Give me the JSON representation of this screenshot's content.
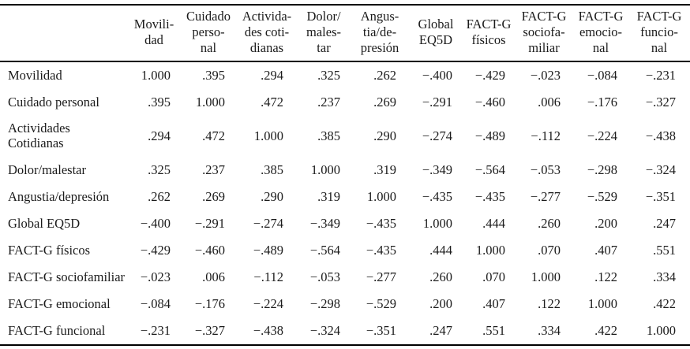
{
  "page": {
    "background_color": "#ffffff",
    "text_color": "#1b1b1b",
    "rule_color": "#000000"
  },
  "table": {
    "corner_label": "",
    "columns": [
      {
        "key": "movilidad",
        "header": "Movili-\ndad"
      },
      {
        "key": "cuidado-personal",
        "header": "Cuidado\nperso-\nnal"
      },
      {
        "key": "actividades-cotidianas",
        "header": "Activida-\ndes coti-\ndianas"
      },
      {
        "key": "dolor-malestar",
        "header": "Dolor/\nmales-\ntar"
      },
      {
        "key": "angustia-depresion",
        "header": "Angus-\ntia/de-\npresión"
      },
      {
        "key": "global-eq5d",
        "header": "Global\nEQ5D"
      },
      {
        "key": "factg-fisicos",
        "header": "FACT-G\nfísicos"
      },
      {
        "key": "factg-sociofamiliar",
        "header": "FACT-G\nsociofa-\nmiliar"
      },
      {
        "key": "factg-emocional",
        "header": "FACT-G\nemocio-\nnal"
      },
      {
        "key": "factg-funcional",
        "header": "FACT-G\nfuncio-\nnal"
      }
    ],
    "rows": [
      {
        "label": "Movilidad",
        "values": [
          "1.000",
          ".395",
          ".294",
          ".325",
          ".262",
          "−.400",
          "−.429",
          "−.023",
          "−.084",
          "−.231"
        ]
      },
      {
        "label": "Cuidado personal",
        "values": [
          ".395",
          "1.000",
          ".472",
          ".237",
          ".269",
          "−.291",
          "−.460",
          ".006",
          "−.176",
          "−.327"
        ]
      },
      {
        "label": "Actividades\nCotidianas",
        "values": [
          ".294",
          ".472",
          "1.000",
          ".385",
          ".290",
          "−.274",
          "−.489",
          "−.112",
          "−.224",
          "−.438"
        ]
      },
      {
        "label": "Dolor/malestar",
        "values": [
          ".325",
          ".237",
          ".385",
          "1.000",
          ".319",
          "−.349",
          "−.564",
          "−.053",
          "−.298",
          "−.324"
        ]
      },
      {
        "label": "Angustia/depresión",
        "values": [
          ".262",
          ".269",
          ".290",
          ".319",
          "1.000",
          "−.435",
          "−.435",
          "−.277",
          "−.529",
          "−.351"
        ]
      },
      {
        "label": "Global EQ5D",
        "values": [
          "−.400",
          "−.291",
          "−.274",
          "−.349",
          "−.435",
          "1.000",
          ".444",
          ".260",
          ".200",
          ".247"
        ]
      },
      {
        "label": "FACT-G físicos",
        "values": [
          "−.429",
          "−.460",
          "−.489",
          "−.564",
          "−.435",
          ".444",
          "1.000",
          ".070",
          ".407",
          ".551"
        ]
      },
      {
        "label": "FACT-G sociofamiliar",
        "values": [
          "−.023",
          ".006",
          "−.112",
          "−.053",
          "−.277",
          ".260",
          ".070",
          "1.000",
          ".122",
          ".334"
        ]
      },
      {
        "label": "FACT-G emocional",
        "values": [
          "−.084",
          "−.176",
          "−.224",
          "−.298",
          "−.529",
          ".200",
          ".407",
          ".122",
          "1.000",
          ".422"
        ]
      },
      {
        "label": "FACT-G funcional",
        "values": [
          "−.231",
          "−.327",
          "−.438",
          "−.324",
          "−.351",
          ".247",
          ".551",
          ".334",
          ".422",
          "1.000"
        ]
      }
    ]
  }
}
